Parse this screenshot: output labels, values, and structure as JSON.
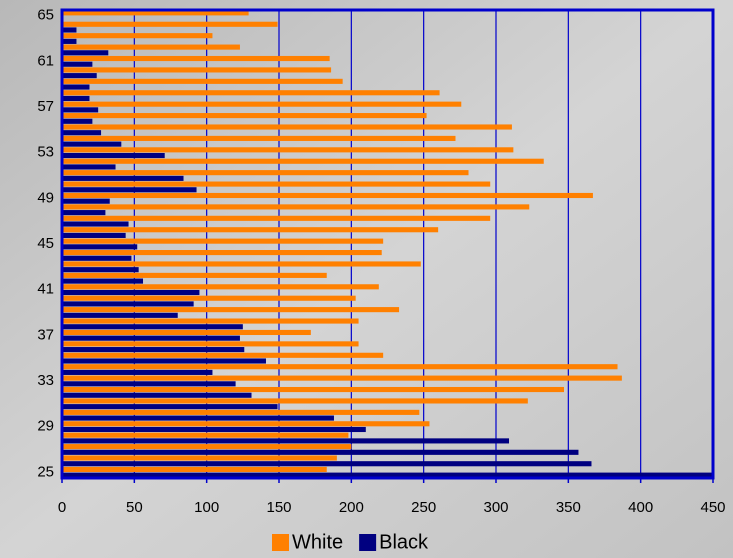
{
  "chart_data": {
    "type": "bar",
    "orientation": "horizontal",
    "categories": [
      "25",
      null,
      null,
      null,
      "29",
      null,
      null,
      null,
      "33",
      null,
      null,
      null,
      "37",
      null,
      null,
      null,
      "41",
      null,
      null,
      null,
      "45",
      null,
      null,
      null,
      "49",
      null,
      null,
      null,
      "53",
      null,
      null,
      null,
      "57",
      null,
      null,
      null,
      "61",
      null,
      null,
      null,
      "65"
    ],
    "series": [
      {
        "name": "White",
        "color": "#ff8000",
        "values": [
          183,
          190,
          200,
          198,
          254,
          247,
          322,
          347,
          387,
          384,
          222,
          205,
          172,
          205,
          233,
          203,
          219,
          183,
          248,
          221,
          222,
          260,
          296,
          323,
          367,
          296,
          281,
          333,
          312,
          272,
          311,
          252,
          276,
          261,
          194,
          186,
          185,
          123,
          104,
          149,
          129
        ]
      },
      {
        "name": "Black",
        "color": "#000080",
        "values": [
          450,
          366,
          357,
          309,
          210,
          188,
          149,
          131,
          120,
          104,
          141,
          126,
          123,
          125,
          80,
          91,
          95,
          56,
          53,
          48,
          52,
          44,
          46,
          30,
          33,
          93,
          84,
          37,
          71,
          41,
          27,
          21,
          25,
          19,
          19,
          24,
          21,
          32,
          10,
          10,
          null
        ]
      }
    ],
    "xlim": [
      0,
      450
    ],
    "xticks": [
      0,
      50,
      100,
      150,
      200,
      250,
      300,
      350,
      400,
      450
    ],
    "grid": true,
    "legend": "bottom"
  }
}
